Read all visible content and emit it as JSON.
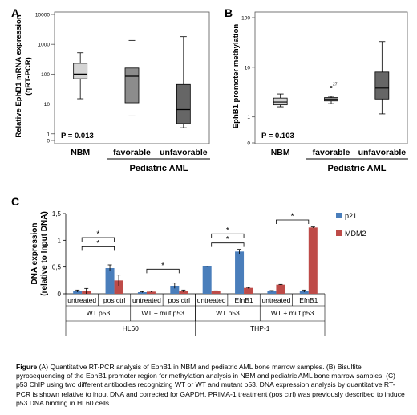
{
  "panels": {
    "a": {
      "label": "A",
      "chart_data": {
        "type": "box",
        "ylabel": "Relative EphB1 mRNA expression (qRT-PCR)",
        "ylabel_lines": [
          "Relative EphB1 mRNA expression",
          "(qRT-PCR)"
        ],
        "yscale": "log",
        "yticks": [
          {
            "value": 10000,
            "label": "10000"
          },
          {
            "value": 1000,
            "label": "1000"
          },
          {
            "value": 100,
            "label": "100"
          },
          {
            "value": 10,
            "label": "10"
          },
          {
            "value": 1,
            "label": "1"
          },
          {
            "value": 0.6,
            "label": "0"
          }
        ],
        "ylim": [
          0.6,
          10000
        ],
        "categories": [
          "NBM",
          "favorable",
          "unfavorable"
        ],
        "group_label": "Pediatric AML",
        "pvalue": "P = 0.013",
        "boxes": [
          {
            "name": "NBM",
            "min": 15,
            "q1": 70,
            "median": 100,
            "q3": 230,
            "max": 520,
            "color": "#d4d4d4"
          },
          {
            "name": "favorable",
            "min": 4,
            "q1": 11,
            "median": 85,
            "q3": 160,
            "max": 1350,
            "color": "#8c8c8c"
          },
          {
            "name": "unfavorable",
            "min": 1.6,
            "q1": 2.2,
            "median": 6.5,
            "q3": 45,
            "max": 1800,
            "color": "#666666"
          }
        ]
      }
    },
    "b": {
      "label": "B",
      "chart_data": {
        "type": "box",
        "ylabel": "EphB1 promoter methylation",
        "yscale": "log",
        "yticks": [
          {
            "value": 100,
            "label": "100"
          },
          {
            "value": 10,
            "label": "10"
          },
          {
            "value": 1,
            "label": "1"
          },
          {
            "value": 0.3,
            "label": "0"
          }
        ],
        "ylim": [
          0.3,
          100
        ],
        "categories": [
          "NBM",
          "favorable",
          "unfavorable"
        ],
        "group_label": "Pediatric AML",
        "pvalue": "P = 0.103",
        "outlier_label": "27",
        "boxes": [
          {
            "name": "NBM",
            "min": 1.6,
            "q1": 1.75,
            "median": 2.0,
            "q3": 2.4,
            "max": 2.9,
            "color": "#d4d4d4"
          },
          {
            "name": "favorable",
            "min": 1.85,
            "q1": 2.1,
            "median": 2.25,
            "q3": 2.45,
            "max": 2.6,
            "outlier": 4.0,
            "color": "#8c8c8c"
          },
          {
            "name": "unfavorable",
            "min": 1.15,
            "q1": 2.3,
            "median": 3.8,
            "q3": 8.0,
            "max": 33,
            "color": "#666666"
          }
        ]
      }
    },
    "c": {
      "label": "C",
      "chart_data": {
        "type": "bar",
        "ylabel": "DNA expression",
        "ylabel2": "(relative to Input DNA)",
        "ylim": [
          0,
          1.5
        ],
        "yticks": [
          {
            "value": 0,
            "label": "0"
          },
          {
            "value": 0.5,
            "label": "0,5"
          },
          {
            "value": 1,
            "label": "1"
          },
          {
            "value": 1.5,
            "label": "1,5"
          }
        ],
        "categories": [
          "untreated",
          "pos ctrl",
          "untreated",
          "pos ctrl",
          "untreated",
          "EfnB1",
          "untreated",
          "EfnB1"
        ],
        "groups": [
          {
            "label": "WT p53",
            "span": [
              0,
              1
            ]
          },
          {
            "label": "WT + mut p53",
            "span": [
              2,
              3
            ]
          },
          {
            "label": "WT p53",
            "span": [
              4,
              5
            ]
          },
          {
            "label": "WT + mut p53",
            "span": [
              6,
              7
            ]
          }
        ],
        "cell_lines": [
          {
            "label": "HL60",
            "span": [
              0,
              3
            ]
          },
          {
            "label": "THP-1",
            "span": [
              4,
              7
            ]
          }
        ],
        "series": [
          {
            "name": "p21",
            "color": "#4a7ebb",
            "values": [
              0.05,
              0.48,
              0.03,
              0.15,
              0.51,
              0.79,
              0.05,
              0.05
            ],
            "errors": [
              0.02,
              0.06,
              0.01,
              0.05,
              0.005,
              0.04,
              0.01,
              0.02
            ]
          },
          {
            "name": "MDM2",
            "color": "#be4b48",
            "values": [
              0.05,
              0.25,
              0.04,
              0.05,
              0.05,
              0.11,
              0.17,
              1.24
            ],
            "errors": [
              0.05,
              0.1,
              0.01,
              0.02,
              0.005,
              0.01,
              0.005,
              0.01
            ]
          }
        ],
        "significance": [
          {
            "from": 0,
            "to": 1,
            "level": 1.05,
            "label": "*"
          },
          {
            "from": 0,
            "to": 1,
            "level": 0.88,
            "label": "*"
          },
          {
            "from": 2,
            "to": 3,
            "level": 0.46,
            "label": "*"
          },
          {
            "from": 4,
            "to": 5,
            "level": 1.12,
            "label": "*"
          },
          {
            "from": 4,
            "to": 5,
            "level": 0.95,
            "label": "*"
          },
          {
            "from": 6,
            "to": 7,
            "level": 1.38,
            "label": "*"
          }
        ]
      }
    }
  },
  "caption": {
    "lead": "Figure",
    "text": " (A) Quantitative RT-PCR analysis of EphB1 in NBM and pediatric AML bone marrow samples. (B) Bisulfite pyrosequencing of the EphB1 promoter region for methylation analysis in NBM and pediatric AML bone marrow samples. (C) p53 ChIP using two different antibodies recognizing WT or WT and mutant p53. DNA expression analysis by quantitative RT-PCR is shown relative to input DNA and corrected for GAPDH. PRIMA-1 treatment (pos ctrl) was previously described to induce p53 DNA binding in HL60 cells."
  }
}
